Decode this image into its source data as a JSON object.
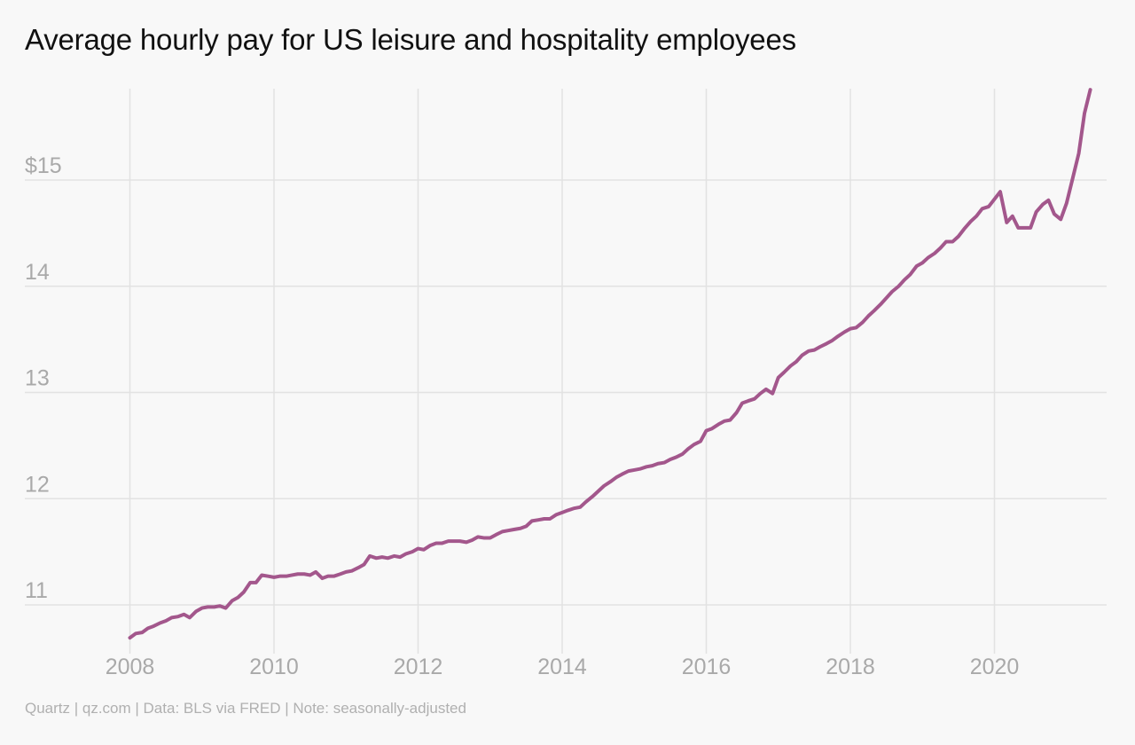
{
  "chart": {
    "title": "Average hourly pay for US leisure and hospitality employees",
    "footer": "Quartz | qz.com | Data: BLS via FRED | Note: seasonally-adjusted"
  },
  "colors": {
    "background": "#f8f8f8",
    "line": "#a3578c",
    "grid": "#e2e2e2",
    "tick_label": "#a9a9a9",
    "title": "#111111",
    "footer": "#b0b0b0"
  },
  "chart_data": {
    "type": "line",
    "title": "Average hourly pay for US leisure and hospitality employees",
    "xlabel": "",
    "ylabel": "",
    "grid": true,
    "legend": "none",
    "x_ticks": [
      {
        "value": 2008,
        "label": "2008"
      },
      {
        "value": 2010,
        "label": "2010"
      },
      {
        "value": 2012,
        "label": "2012"
      },
      {
        "value": 2014,
        "label": "2014"
      },
      {
        "value": 2016,
        "label": "2016"
      },
      {
        "value": 2018,
        "label": "2018"
      },
      {
        "value": 2020,
        "label": "2020"
      }
    ],
    "y_ticks": [
      {
        "value": 11,
        "label": "11"
      },
      {
        "value": 12,
        "label": "12"
      },
      {
        "value": 13,
        "label": "13"
      },
      {
        "value": 14,
        "label": "14"
      },
      {
        "value": 15,
        "label": "$15"
      }
    ],
    "xlim": [
      2007.9,
      2021.5
    ],
    "ylim": [
      10.7,
      15.85
    ],
    "series": [
      {
        "points": [
          [
            2008.0,
            10.69
          ],
          [
            2008.08,
            10.73
          ],
          [
            2008.17,
            10.74
          ],
          [
            2008.25,
            10.78
          ],
          [
            2008.33,
            10.8
          ],
          [
            2008.42,
            10.83
          ],
          [
            2008.5,
            10.85
          ],
          [
            2008.58,
            10.88
          ],
          [
            2008.67,
            10.89
          ],
          [
            2008.75,
            10.91
          ],
          [
            2008.83,
            10.88
          ],
          [
            2008.92,
            10.94
          ],
          [
            2009.0,
            10.97
          ],
          [
            2009.08,
            10.98
          ],
          [
            2009.17,
            10.98
          ],
          [
            2009.25,
            10.99
          ],
          [
            2009.33,
            10.97
          ],
          [
            2009.42,
            11.04
          ],
          [
            2009.5,
            11.07
          ],
          [
            2009.58,
            11.12
          ],
          [
            2009.67,
            11.21
          ],
          [
            2009.75,
            11.21
          ],
          [
            2009.83,
            11.28
          ],
          [
            2009.92,
            11.27
          ],
          [
            2010.0,
            11.26
          ],
          [
            2010.08,
            11.27
          ],
          [
            2010.17,
            11.27
          ],
          [
            2010.25,
            11.28
          ],
          [
            2010.33,
            11.29
          ],
          [
            2010.42,
            11.29
          ],
          [
            2010.5,
            11.28
          ],
          [
            2010.58,
            11.31
          ],
          [
            2010.67,
            11.25
          ],
          [
            2010.75,
            11.27
          ],
          [
            2010.83,
            11.27
          ],
          [
            2010.92,
            11.29
          ],
          [
            2011.0,
            11.31
          ],
          [
            2011.08,
            11.32
          ],
          [
            2011.17,
            11.35
          ],
          [
            2011.25,
            11.38
          ],
          [
            2011.33,
            11.46
          ],
          [
            2011.42,
            11.44
          ],
          [
            2011.5,
            11.45
          ],
          [
            2011.58,
            11.44
          ],
          [
            2011.67,
            11.46
          ],
          [
            2011.75,
            11.45
          ],
          [
            2011.83,
            11.48
          ],
          [
            2011.92,
            11.5
          ],
          [
            2012.0,
            11.53
          ],
          [
            2012.08,
            11.52
          ],
          [
            2012.17,
            11.56
          ],
          [
            2012.25,
            11.58
          ],
          [
            2012.33,
            11.58
          ],
          [
            2012.42,
            11.6
          ],
          [
            2012.5,
            11.6
          ],
          [
            2012.58,
            11.6
          ],
          [
            2012.67,
            11.59
          ],
          [
            2012.75,
            11.61
          ],
          [
            2012.83,
            11.64
          ],
          [
            2012.92,
            11.63
          ],
          [
            2013.0,
            11.63
          ],
          [
            2013.08,
            11.66
          ],
          [
            2013.17,
            11.69
          ],
          [
            2013.25,
            11.7
          ],
          [
            2013.33,
            11.71
          ],
          [
            2013.42,
            11.72
          ],
          [
            2013.5,
            11.74
          ],
          [
            2013.58,
            11.79
          ],
          [
            2013.67,
            11.8
          ],
          [
            2013.75,
            11.81
          ],
          [
            2013.83,
            11.81
          ],
          [
            2013.92,
            11.85
          ],
          [
            2014.0,
            11.87
          ],
          [
            2014.08,
            11.89
          ],
          [
            2014.17,
            11.91
          ],
          [
            2014.25,
            11.92
          ],
          [
            2014.33,
            11.97
          ],
          [
            2014.42,
            12.02
          ],
          [
            2014.5,
            12.07
          ],
          [
            2014.58,
            12.12
          ],
          [
            2014.67,
            12.16
          ],
          [
            2014.75,
            12.2
          ],
          [
            2014.83,
            12.23
          ],
          [
            2014.92,
            12.26
          ],
          [
            2015.0,
            12.27
          ],
          [
            2015.08,
            12.28
          ],
          [
            2015.17,
            12.3
          ],
          [
            2015.25,
            12.31
          ],
          [
            2015.33,
            12.33
          ],
          [
            2015.42,
            12.34
          ],
          [
            2015.5,
            12.37
          ],
          [
            2015.58,
            12.39
          ],
          [
            2015.67,
            12.42
          ],
          [
            2015.75,
            12.47
          ],
          [
            2015.83,
            12.51
          ],
          [
            2015.92,
            12.54
          ],
          [
            2016.0,
            12.64
          ],
          [
            2016.08,
            12.66
          ],
          [
            2016.17,
            12.7
          ],
          [
            2016.25,
            12.73
          ],
          [
            2016.33,
            12.74
          ],
          [
            2016.42,
            12.81
          ],
          [
            2016.5,
            12.9
          ],
          [
            2016.58,
            12.92
          ],
          [
            2016.67,
            12.94
          ],
          [
            2016.75,
            12.99
          ],
          [
            2016.83,
            13.03
          ],
          [
            2016.92,
            12.99
          ],
          [
            2017.0,
            13.14
          ],
          [
            2017.08,
            13.19
          ],
          [
            2017.17,
            13.25
          ],
          [
            2017.25,
            13.29
          ],
          [
            2017.33,
            13.35
          ],
          [
            2017.42,
            13.39
          ],
          [
            2017.5,
            13.4
          ],
          [
            2017.58,
            13.43
          ],
          [
            2017.67,
            13.46
          ],
          [
            2017.75,
            13.49
          ],
          [
            2017.83,
            13.53
          ],
          [
            2017.92,
            13.57
          ],
          [
            2018.0,
            13.6
          ],
          [
            2018.08,
            13.61
          ],
          [
            2018.17,
            13.66
          ],
          [
            2018.25,
            13.72
          ],
          [
            2018.33,
            13.77
          ],
          [
            2018.42,
            13.83
          ],
          [
            2018.5,
            13.89
          ],
          [
            2018.58,
            13.95
          ],
          [
            2018.67,
            14.0
          ],
          [
            2018.75,
            14.06
          ],
          [
            2018.83,
            14.11
          ],
          [
            2018.92,
            14.19
          ],
          [
            2019.0,
            14.22
          ],
          [
            2019.08,
            14.27
          ],
          [
            2019.17,
            14.31
          ],
          [
            2019.25,
            14.36
          ],
          [
            2019.33,
            14.42
          ],
          [
            2019.42,
            14.42
          ],
          [
            2019.5,
            14.47
          ],
          [
            2019.58,
            14.54
          ],
          [
            2019.67,
            14.61
          ],
          [
            2019.75,
            14.66
          ],
          [
            2019.83,
            14.73
          ],
          [
            2019.92,
            14.75
          ],
          [
            2020.0,
            14.82
          ],
          [
            2020.08,
            14.89
          ],
          [
            2020.17,
            14.6
          ],
          [
            2020.25,
            14.66
          ],
          [
            2020.33,
            14.55
          ],
          [
            2020.42,
            14.55
          ],
          [
            2020.5,
            14.55
          ],
          [
            2020.58,
            14.7
          ],
          [
            2020.67,
            14.77
          ],
          [
            2020.75,
            14.81
          ],
          [
            2020.83,
            14.68
          ],
          [
            2020.92,
            14.63
          ],
          [
            2021.0,
            14.78
          ],
          [
            2021.08,
            15.0
          ],
          [
            2021.17,
            15.25
          ],
          [
            2021.25,
            15.63
          ],
          [
            2021.33,
            15.85
          ]
        ]
      }
    ]
  }
}
